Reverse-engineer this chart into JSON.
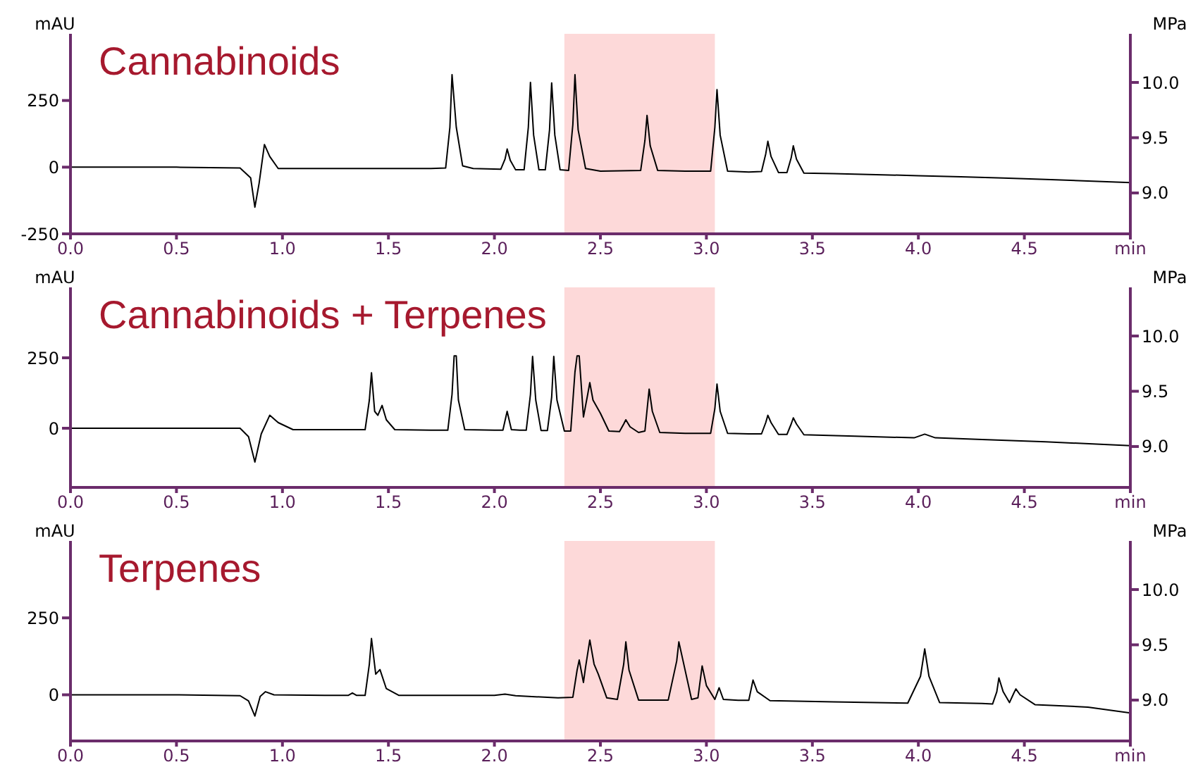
{
  "chart_data": [
    {
      "type": "line",
      "title": "Cannabinoids",
      "ylabel": "mAU",
      "y2label": "MPa",
      "xlim": [
        0,
        5
      ],
      "xticks": [
        {
          "value": 0,
          "label": "0.0"
        },
        {
          "value": 0.5,
          "label": "0.5"
        },
        {
          "value": 1,
          "label": "1.0"
        },
        {
          "value": 1.5,
          "label": "1.5"
        },
        {
          "value": 2,
          "label": "2.0"
        },
        {
          "value": 2.5,
          "label": "2.5"
        },
        {
          "value": 3,
          "label": "3.0"
        },
        {
          "value": 3.5,
          "label": "3.5"
        },
        {
          "value": 4,
          "label": "4.0"
        },
        {
          "value": 4.5,
          "label": "4.5"
        },
        {
          "value": 5,
          "label": "min"
        }
      ],
      "ylim": [
        -250,
        500
      ],
      "yticks": [
        -250,
        0,
        250
      ],
      "y2lim": [
        8.63,
        10.44
      ],
      "y2ticks": [
        {
          "value": 9,
          "label": "9.0"
        },
        {
          "value": 9.5,
          "label": "9.5"
        },
        {
          "value": 10,
          "label": "10.0"
        }
      ],
      "bands": [
        {
          "axis": "x",
          "from": 2.33,
          "to": 3.04,
          "color": "#fdd9d9"
        }
      ],
      "series": [
        {
          "color": "#000000",
          "x": [
            0,
            0.5,
            0.8,
            0.85,
            0.87,
            0.89,
            0.915,
            0.94,
            0.98,
            1.2,
            1.5,
            1.7,
            1.77,
            1.79,
            1.8,
            1.82,
            1.85,
            1.9,
            2.03,
            2.05,
            2.06,
            2.075,
            2.1,
            2.14,
            2.16,
            2.17,
            2.185,
            2.21,
            2.24,
            2.26,
            2.27,
            2.285,
            2.31,
            2.35,
            2.37,
            2.38,
            2.395,
            2.43,
            2.5,
            2.69,
            2.71,
            2.72,
            2.735,
            2.77,
            2.9,
            3.02,
            3.04,
            3.05,
            3.065,
            3.1,
            3.2,
            3.26,
            3.28,
            3.29,
            3.305,
            3.34,
            3.38,
            3.4,
            3.41,
            3.425,
            3.46,
            3.6,
            3.8,
            4.0,
            4.2,
            4.4,
            4.6,
            4.8,
            5.0
          ],
          "values": [
            0,
            0,
            -3,
            -40,
            -150,
            -60,
            85,
            40,
            -5,
            -5,
            -5,
            -5,
            -3,
            150,
            347,
            150,
            5,
            -5,
            -8,
            30,
            68,
            25,
            -10,
            -10,
            150,
            318,
            120,
            -10,
            -10,
            140,
            316,
            120,
            -10,
            -12,
            160,
            347,
            140,
            -5,
            -15,
            -12,
            100,
            194,
            80,
            -12,
            -15,
            -15,
            150,
            291,
            120,
            -15,
            -18,
            -16,
            50,
            97,
            40,
            -20,
            -20,
            35,
            80,
            30,
            -22,
            -24,
            -28,
            -32,
            -36,
            -41,
            -46,
            -52,
            -58
          ]
        }
      ]
    },
    {
      "type": "line",
      "title": "Cannabinoids + Terpenes",
      "ylabel": "mAU",
      "y2label": "MPa",
      "xlim": [
        0,
        5
      ],
      "xticks": [
        {
          "value": 0,
          "label": "0.0"
        },
        {
          "value": 0.5,
          "label": "0.5"
        },
        {
          "value": 1,
          "label": "1.0"
        },
        {
          "value": 1.5,
          "label": "1.5"
        },
        {
          "value": 2,
          "label": "2.0"
        },
        {
          "value": 2.5,
          "label": "2.5"
        },
        {
          "value": 3,
          "label": "3.0"
        },
        {
          "value": 3.5,
          "label": "3.5"
        },
        {
          "value": 4,
          "label": "4.0"
        },
        {
          "value": 4.5,
          "label": "4.5"
        },
        {
          "value": 5,
          "label": "min"
        }
      ],
      "ylim": [
        -210,
        500
      ],
      "yticks": [
        0,
        250
      ],
      "y2lim": [
        8.63,
        10.44
      ],
      "y2ticks": [
        {
          "value": 9,
          "label": "9.0"
        },
        {
          "value": 9.5,
          "label": "9.5"
        },
        {
          "value": 10,
          "label": "10.0"
        }
      ],
      "bands": [
        {
          "axis": "x",
          "from": 2.33,
          "to": 3.04,
          "color": "#fdd9d9"
        }
      ],
      "series": [
        {
          "color": "#000000",
          "x": [
            0,
            0.5,
            0.8,
            0.84,
            0.87,
            0.9,
            0.94,
            0.98,
            1.05,
            1.3,
            1.39,
            1.41,
            1.42,
            1.435,
            1.45,
            1.47,
            1.49,
            1.53,
            1.7,
            1.78,
            1.8,
            1.81,
            1.82,
            1.83,
            1.86,
            2.0,
            2.04,
            2.06,
            2.08,
            2.12,
            2.15,
            2.17,
            2.18,
            2.195,
            2.22,
            2.25,
            2.27,
            2.28,
            2.295,
            2.33,
            2.36,
            2.38,
            2.39,
            2.4,
            2.42,
            2.44,
            2.45,
            2.465,
            2.5,
            2.54,
            2.59,
            2.61,
            2.62,
            2.64,
            2.68,
            2.71,
            2.73,
            2.745,
            2.78,
            2.9,
            3.02,
            3.04,
            3.05,
            3.065,
            3.1,
            3.2,
            3.26,
            3.28,
            3.29,
            3.305,
            3.34,
            3.38,
            3.4,
            3.41,
            3.425,
            3.46,
            3.7,
            3.98,
            4.03,
            4.08,
            4.3,
            4.6,
            5.0
          ],
          "values": [
            0,
            0,
            0,
            -30,
            -120,
            -20,
            46,
            20,
            -5,
            -5,
            -5,
            100,
            197,
            60,
            46,
            81,
            30,
            -5,
            -7,
            -7,
            120,
            257,
            257,
            100,
            -5,
            -7,
            -7,
            60,
            -5,
            -7,
            -7,
            120,
            255,
            100,
            -8,
            -8,
            110,
            255,
            100,
            -10,
            -10,
            200,
            257,
            257,
            40,
            120,
            162,
            100,
            53,
            -10,
            -12,
            15,
            30,
            5,
            -15,
            -10,
            139,
            60,
            -15,
            -18,
            -18,
            70,
            157,
            60,
            -18,
            -20,
            -20,
            20,
            46,
            20,
            -22,
            -22,
            15,
            37,
            15,
            -23,
            -28,
            -34,
            -21,
            -34,
            -40,
            -48,
            -62
          ]
        }
      ]
    },
    {
      "type": "line",
      "title": "Terpenes",
      "ylabel": "mAU",
      "y2label": "MPa",
      "xlim": [
        0,
        5
      ],
      "xticks": [
        {
          "value": 0,
          "label": "0.0"
        },
        {
          "value": 0.5,
          "label": "0.5"
        },
        {
          "value": 1,
          "label": "1.0"
        },
        {
          "value": 1.5,
          "label": "1.5"
        },
        {
          "value": 2,
          "label": "2.0"
        },
        {
          "value": 2.5,
          "label": "2.5"
        },
        {
          "value": 3,
          "label": "3.0"
        },
        {
          "value": 3.5,
          "label": "3.5"
        },
        {
          "value": 4,
          "label": "4.0"
        },
        {
          "value": 4.5,
          "label": "4.5"
        },
        {
          "value": 5,
          "label": "min"
        }
      ],
      "ylim": [
        -150,
        500
      ],
      "yticks": [
        0,
        250
      ],
      "y2lim": [
        8.63,
        10.44
      ],
      "y2ticks": [
        {
          "value": 9,
          "label": "9.0"
        },
        {
          "value": 9.5,
          "label": "9.5"
        },
        {
          "value": 10,
          "label": "10.0"
        }
      ],
      "bands": [
        {
          "axis": "x",
          "from": 2.33,
          "to": 3.04,
          "color": "#fdd9d9"
        }
      ],
      "series": [
        {
          "color": "#000000",
          "x": [
            0,
            0.5,
            0.8,
            0.84,
            0.87,
            0.895,
            0.92,
            0.96,
            1.2,
            1.31,
            1.33,
            1.35,
            1.39,
            1.41,
            1.42,
            1.44,
            1.46,
            1.49,
            1.55,
            2.0,
            2.05,
            2.1,
            2.3,
            2.37,
            2.39,
            2.4,
            2.42,
            2.43,
            2.45,
            2.47,
            2.49,
            2.53,
            2.58,
            2.61,
            2.62,
            2.635,
            2.68,
            2.82,
            2.86,
            2.87,
            2.89,
            2.93,
            2.96,
            2.98,
            3.0,
            3.04,
            3.06,
            3.08,
            3.15,
            3.2,
            3.22,
            3.24,
            3.3,
            3.6,
            3.95,
            4.01,
            4.03,
            4.05,
            4.1,
            4.3,
            4.35,
            4.37,
            4.38,
            4.4,
            4.43,
            4.45,
            4.46,
            4.48,
            4.55,
            4.8,
            5.0
          ],
          "values": [
            0,
            0,
            -3,
            -20,
            -69,
            -5,
            10,
            0,
            -2,
            -2,
            6,
            -2,
            -2,
            100,
            183,
            67,
            82,
            20,
            -2,
            -2,
            2,
            -3,
            -10,
            -8,
            80,
            113,
            40,
            90,
            178,
            100,
            67,
            -10,
            -15,
            100,
            172,
            80,
            -17,
            -17,
            110,
            172,
            110,
            -15,
            -10,
            94,
            30,
            -15,
            23,
            -15,
            -18,
            -18,
            48,
            10,
            -19,
            -23,
            -27,
            60,
            149,
            60,
            -25,
            -28,
            -30,
            10,
            55,
            10,
            -25,
            5,
            19,
            0,
            -32,
            -40,
            -59
          ]
        }
      ]
    }
  ]
}
